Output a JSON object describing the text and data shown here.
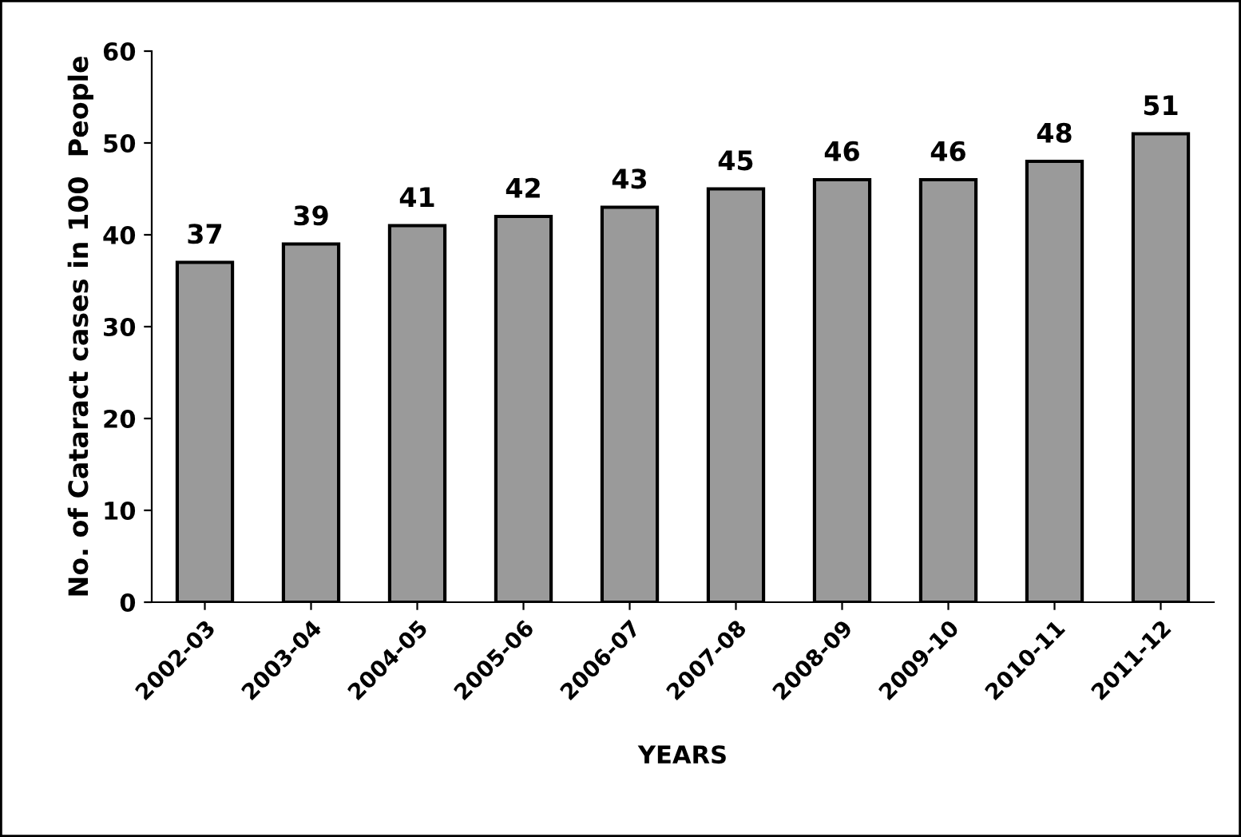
{
  "chart_data": {
    "type": "bar",
    "xlabel": "YEARS",
    "ylabel": "No. of Cataract cases in 100  People",
    "categories": [
      "2002-03",
      "2003-04",
      "2004-05",
      "2005-06",
      "2006-07",
      "2007-08",
      "2008-09",
      "2009-10",
      "2010-11",
      "2011-12"
    ],
    "values": [
      37,
      39,
      41,
      42,
      43,
      45,
      46,
      46,
      48,
      51
    ],
    "color": "#9a9a9a",
    "ylim": [
      0,
      60
    ],
    "yticks": [
      0,
      10,
      20,
      30,
      40,
      50,
      60
    ],
    "grid": false,
    "data_labels": true
  }
}
